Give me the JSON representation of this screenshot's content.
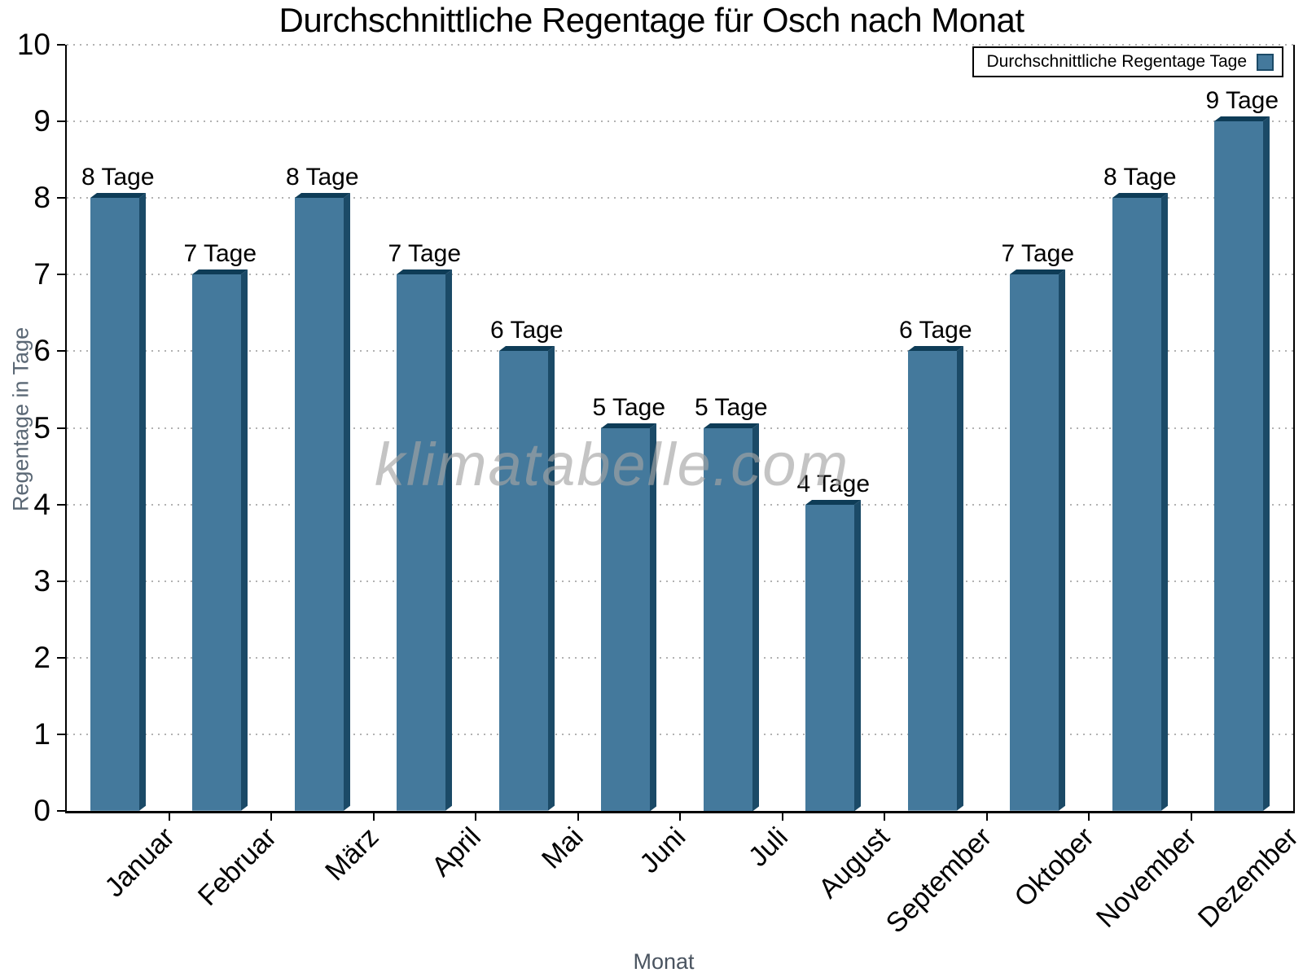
{
  "title": "Durchschnittliche Regentage für Osch nach Monat",
  "legend": {
    "label": "Durchschnittliche Regentage Tage"
  },
  "watermark": "klimatabelle.com",
  "y_axis_label": "Regentage in Tage",
  "x_axis_label": "Monat",
  "colors": {
    "bar_front": "#44799C",
    "bar_side": "#1B4A67",
    "bar_top": "#0E3C57",
    "axis": "#000000",
    "grid": "#B2B2B2",
    "y_axis_label_text": "#5B6875",
    "x_axis_label_text": "#4A5460",
    "watermark_text": "#A5A5A5"
  },
  "chart_data": {
    "type": "bar",
    "title": "Durchschnittliche Regentage für Osch nach Monat",
    "xlabel": "Monat",
    "ylabel": "Regentage in Tage",
    "categories": [
      "Januar",
      "Februar",
      "März",
      "April",
      "Mai",
      "Juni",
      "Juli",
      "August",
      "September",
      "Oktober",
      "November",
      "Dezember"
    ],
    "values": [
      8,
      7,
      8,
      7,
      6,
      5,
      5,
      4,
      6,
      7,
      8,
      9
    ],
    "value_labels": [
      "8 Tage",
      "7 Tage",
      "8 Tage",
      "7 Tage",
      "6 Tage",
      "5 Tage",
      "5 Tage",
      "4 Tage",
      "6 Tage",
      "7 Tage",
      "8 Tage",
      "9 Tage"
    ],
    "series_name": "Durchschnittliche Regentage Tage",
    "unit_suffix": "Tage",
    "ylim": [
      0,
      10
    ],
    "y_ticks": [
      0,
      1,
      2,
      3,
      4,
      5,
      6,
      7,
      8,
      9,
      10
    ],
    "grid": "horizontal-dotted",
    "legend_position": "top-right",
    "bar_style": "3d-bevel"
  }
}
